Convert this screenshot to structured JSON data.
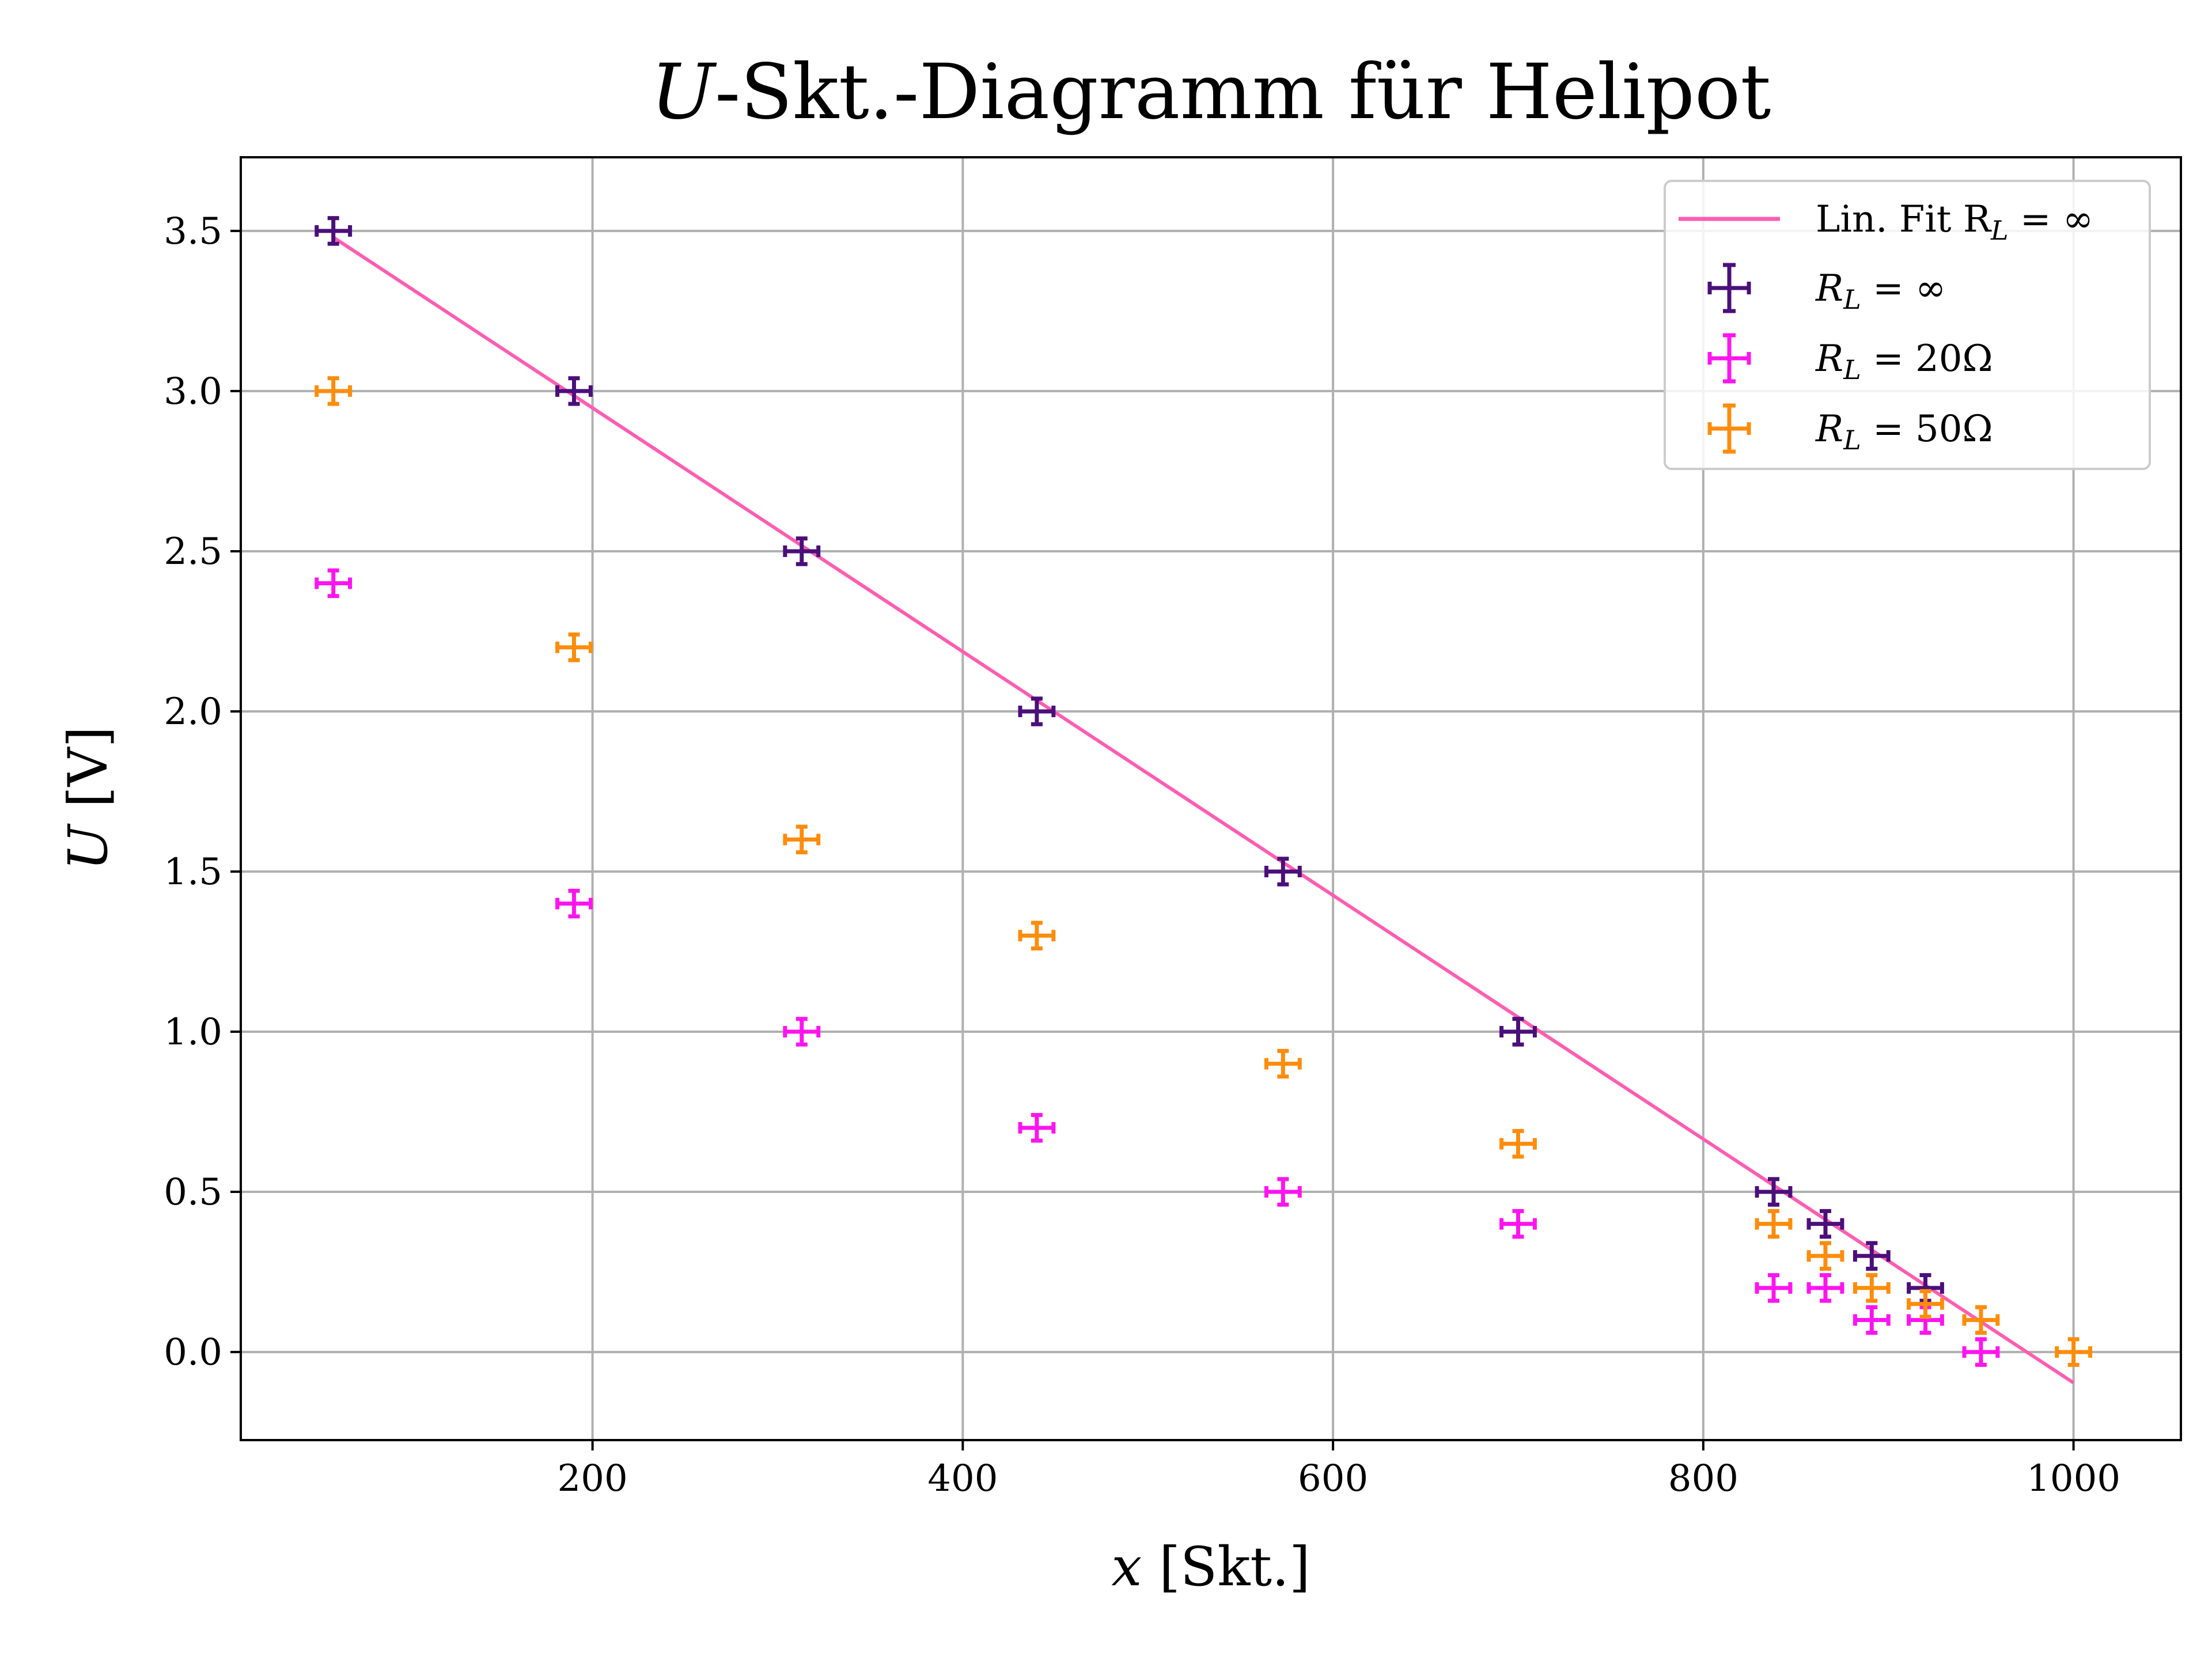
{
  "chart_data": {
    "type": "scatter",
    "title": "U-Skt.-Diagramm für Helipot",
    "title_parts": {
      "italic": "U",
      "rest": "-Skt.-Diagramm für Helipot"
    },
    "xlabel": "x [Skt.]",
    "xlabel_parts": {
      "italic": "x",
      "rest": " [Skt.]"
    },
    "ylabel": "U [V]",
    "ylabel_parts": {
      "italic": "U",
      "rest": " [V]"
    },
    "xlim": [
      10,
      1058
    ],
    "ylim": [
      -0.275,
      3.73
    ],
    "xticks": [
      200,
      400,
      600,
      800,
      1000
    ],
    "xtick_labels": [
      "200",
      "400",
      "600",
      "800",
      "1000"
    ],
    "yticks": [
      0.0,
      0.5,
      1.0,
      1.5,
      2.0,
      2.5,
      3.0,
      3.5
    ],
    "ytick_labels": [
      "0.0",
      "0.5",
      "1.0",
      "1.5",
      "2.0",
      "2.5",
      "3.0",
      "3.5"
    ],
    "grid": true,
    "legend_position": "top-right",
    "fit": {
      "name": "Lin. Fit R_L = ∞",
      "legend_main": "Lin. Fit R",
      "legend_sub": "L",
      "legend_rest": " = ∞",
      "color": "#ff5db1",
      "x": [
        60,
        1000
      ],
      "y": [
        3.48,
        -0.096
      ]
    },
    "x_error": 9,
    "y_error": 0.04,
    "series": [
      {
        "name": "R_L = ∞",
        "legend_main": "R",
        "legend_sub": "L",
        "legend_rest": " = ∞",
        "color": "#4b0f7a",
        "x": [
          60,
          190,
          313,
          440,
          573,
          700,
          838,
          866,
          891,
          920
        ],
        "y": [
          3.5,
          3.0,
          2.5,
          2.0,
          1.5,
          1.0,
          0.5,
          0.4,
          0.3,
          0.2
        ]
      },
      {
        "name": "R_L = 20Ω",
        "legend_main": "R",
        "legend_sub": "L",
        "legend_rest": " = 20Ω",
        "color": "#ff14f0",
        "x": [
          60,
          190,
          313,
          440,
          573,
          700,
          838,
          866,
          891,
          920,
          950
        ],
        "y": [
          2.4,
          1.4,
          1.0,
          0.7,
          0.5,
          0.4,
          0.2,
          0.2,
          0.1,
          0.1,
          0.0
        ]
      },
      {
        "name": "R_L = 50Ω",
        "legend_main": "R",
        "legend_sub": "L",
        "legend_rest": " = 50Ω",
        "color": "#ff8c0a",
        "x": [
          60,
          190,
          313,
          440,
          573,
          700,
          838,
          866,
          891,
          920,
          950,
          1000
        ],
        "y": [
          3.0,
          2.2,
          1.6,
          1.3,
          0.9,
          0.65,
          0.4,
          0.3,
          0.2,
          0.15,
          0.1,
          0.0
        ]
      }
    ]
  }
}
